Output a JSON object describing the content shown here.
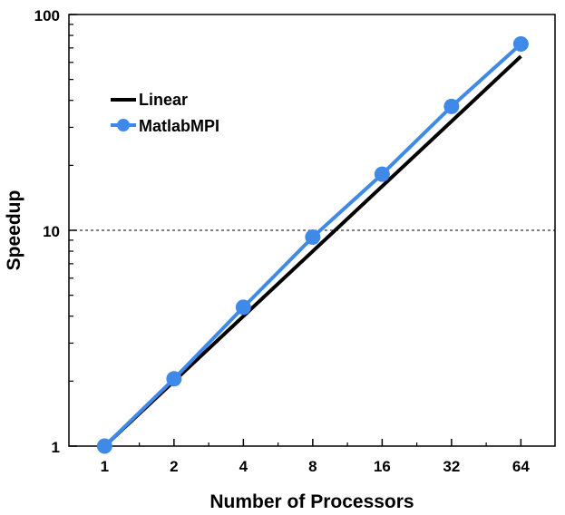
{
  "chart_data": {
    "type": "line",
    "xlabel": "Number of Processors",
    "ylabel": "Speedup",
    "x_scale": "log2",
    "y_scale": "log10",
    "x": [
      1,
      2,
      4,
      8,
      16,
      32,
      64
    ],
    "x_tick_labels": [
      "1",
      "2",
      "4",
      "8",
      "16",
      "32",
      "64"
    ],
    "y_tick_labels": [
      "1",
      "10",
      "100"
    ],
    "y_ticks": [
      1,
      10,
      100
    ],
    "xlim": [
      0.7,
      90
    ],
    "ylim": [
      1,
      100
    ],
    "gridlines": [
      {
        "axis": "y",
        "value": 10,
        "style": "dotted"
      }
    ],
    "legend": {
      "placement": "upper-left"
    },
    "series": [
      {
        "name": "Linear",
        "color": "#000000",
        "marker": "none",
        "values": [
          1,
          2,
          4,
          8,
          16,
          32,
          64
        ]
      },
      {
        "name": "MatlabMPI",
        "color": "#3f8ae8",
        "marker": "circle",
        "values": [
          1.0,
          2.05,
          4.4,
          9.3,
          18.2,
          37.5,
          73
        ]
      }
    ]
  }
}
